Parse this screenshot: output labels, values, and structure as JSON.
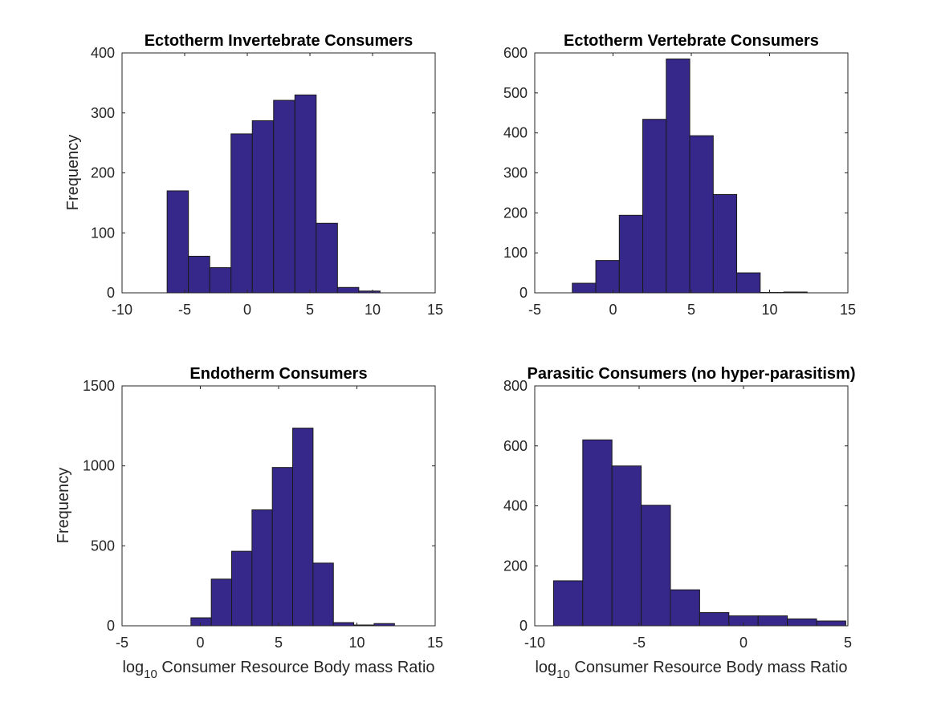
{
  "colors": {
    "bar_fill": "#35288a",
    "bar_edge": "#1a1a1a",
    "axis": "#262626"
  },
  "chart_data": [
    {
      "type": "bar",
      "title": "Ectotherm Invertebrate Consumers",
      "ylabel": "Frequency",
      "xlabel": "",
      "xlim": [
        -10,
        15
      ],
      "ylim": [
        0,
        400
      ],
      "xticks": [
        "-10",
        "-5",
        "0",
        "5",
        "10",
        "15"
      ],
      "yticks": [
        "0",
        "100",
        "200",
        "300",
        "400"
      ],
      "bin_edges": [
        -6.4,
        -4.7,
        -3.0,
        -1.3,
        0.4,
        2.1,
        3.8,
        5.5,
        7.2,
        8.9,
        10.6,
        12.3
      ],
      "values": [
        170,
        61,
        42,
        265,
        287,
        321,
        330,
        116,
        9,
        3,
        0
      ],
      "grid": false
    },
    {
      "type": "bar",
      "title": "Ectotherm Vertebrate Consumers",
      "ylabel": "",
      "xlabel": "",
      "xlim": [
        -5,
        15
      ],
      "ylim": [
        0,
        600
      ],
      "xticks": [
        "-5",
        "0",
        "5",
        "10",
        "15"
      ],
      "yticks": [
        "0",
        "100",
        "200",
        "300",
        "400",
        "500",
        "600"
      ],
      "bin_edges": [
        -2.6,
        -1.1,
        0.4,
        1.9,
        3.4,
        4.9,
        6.4,
        7.9,
        9.4,
        10.9,
        12.4
      ],
      "values": [
        24,
        81,
        194,
        434,
        585,
        393,
        246,
        50,
        1,
        2
      ],
      "grid": false
    },
    {
      "type": "bar",
      "title": "Endotherm Consumers",
      "ylabel": "Frequency",
      "xlabel": "log10 Consumer Resource Body mass Ratio",
      "xlim": [
        -5,
        15
      ],
      "ylim": [
        0,
        1500
      ],
      "xticks": [
        "-5",
        "0",
        "5",
        "10",
        "15"
      ],
      "yticks": [
        "0",
        "500",
        "1000",
        "1500"
      ],
      "bin_edges": [
        -0.6,
        0.7,
        2.0,
        3.3,
        4.6,
        5.9,
        7.2,
        8.5,
        9.8,
        11.1,
        12.4
      ],
      "values": [
        50,
        292,
        466,
        725,
        990,
        1236,
        392,
        20,
        5,
        14
      ],
      "grid": false
    },
    {
      "type": "bar",
      "title": "Parasitic Consumers (no hyper-parasitism)",
      "ylabel": "",
      "xlabel": "log10 Consumer Resource Body mass Ratio",
      "xlim": [
        -10,
        5
      ],
      "ylim": [
        0,
        800
      ],
      "xticks": [
        "-10",
        "-5",
        "0",
        "5"
      ],
      "yticks": [
        "0",
        "200",
        "400",
        "600",
        "800"
      ],
      "bin_edges": [
        -9.1,
        -7.7,
        -6.3,
        -4.9,
        -3.5,
        -2.1,
        -0.7,
        0.7,
        2.1,
        3.5,
        4.9
      ],
      "values": [
        150,
        620,
        533,
        402,
        120,
        44,
        33,
        33,
        23,
        16
      ],
      "grid": false
    }
  ]
}
